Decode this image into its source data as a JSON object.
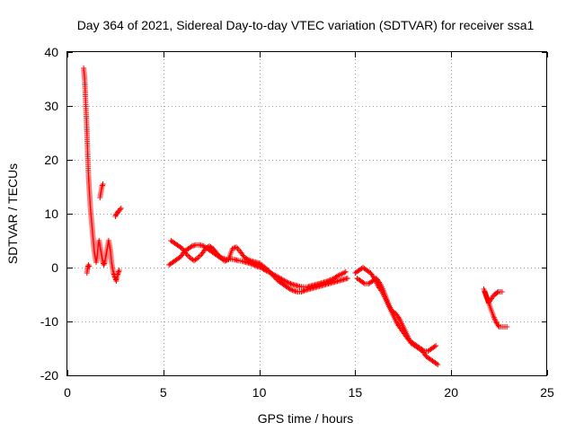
{
  "chart_data": {
    "type": "scatter",
    "title": "Day 364 of 2021, Sidereal Day-to-day VTEC variation (SDTVAR) for receiver ssa1",
    "xlabel": "GPS time / hours",
    "ylabel": "SDTVAR / TECUs",
    "xlim": [
      0,
      25
    ],
    "ylim": [
      -20,
      40
    ],
    "xticks": [
      "0",
      "5",
      "10",
      "15",
      "20",
      "25"
    ],
    "yticks": [
      "-20",
      "-10",
      "0",
      "10",
      "20",
      "30",
      "40"
    ],
    "grid": true,
    "marker": "plus",
    "color": "#ff0000",
    "series": [
      {
        "name": "ssa1",
        "segments": [
          {
            "x": [
              0.85,
              0.9,
              0.95,
              1.0,
              1.05,
              1.1,
              1.15,
              1.2,
              1.25,
              1.3,
              1.35,
              1.4,
              1.45,
              1.5,
              1.55,
              1.6,
              1.65,
              1.7,
              1.75,
              1.8,
              1.85,
              1.9,
              1.95,
              2.0,
              2.05,
              2.1,
              2.15,
              2.2,
              2.25,
              2.3,
              2.35,
              2.4,
              2.45,
              2.5,
              2.55,
              2.6,
              2.65,
              2.7
            ],
            "y": [
              37,
              35,
              31,
              27,
              22,
              17,
              14,
              11,
              9,
              7,
              5,
              3,
              2,
              1,
              2,
              4,
              5,
              4,
              3,
              2,
              1,
              0.5,
              1,
              2,
              3,
              4,
              5,
              4,
              3,
              1,
              0,
              -1,
              -1.5,
              -2,
              -2.5,
              -1.5,
              -1,
              -0.5
            ]
          },
          {
            "x": [
              1.02,
              1.06,
              1.1,
              1.14
            ],
            "y": [
              -1,
              0,
              0.5,
              0.2
            ]
          },
          {
            "x": [
              1.7,
              1.75,
              1.8,
              1.85
            ],
            "y": [
              13,
              14,
              15,
              15.5
            ]
          },
          {
            "x": [
              2.5,
              2.55,
              2.6,
              2.65,
              2.7,
              2.75,
              2.8
            ],
            "y": [
              9.5,
              10,
              10,
              10.5,
              10.5,
              10.8,
              11
            ]
          },
          {
            "x": [
              5.3,
              5.5,
              5.7,
              5.9,
              6.1,
              6.3,
              6.5,
              6.7,
              6.9,
              7.1,
              7.3,
              7.5,
              7.7,
              7.9,
              8.1,
              8.3,
              8.5,
              8.7,
              8.9,
              9.1,
              9.3,
              9.5,
              9.7,
              9.9,
              10.1,
              10.3,
              10.5,
              10.7,
              10.9,
              11.1,
              11.3,
              11.5,
              11.7,
              11.9,
              12.1,
              12.3,
              12.5,
              12.7,
              12.9,
              13.1,
              13.3,
              13.5,
              13.7,
              13.9,
              14.1,
              14.3,
              14.5
            ],
            "y": [
              0.5,
              1,
              1.5,
              2,
              3,
              3.5,
              4,
              4.2,
              4.2,
              4,
              3.5,
              3,
              2.5,
              2,
              1.7,
              1.5,
              1.6,
              1.5,
              1.3,
              1.2,
              1,
              0.8,
              0.5,
              0.2,
              0,
              -0.5,
              -0.8,
              -1.2,
              -1.6,
              -2,
              -2.4,
              -2.8,
              -3.1,
              -3.3,
              -3.5,
              -3.6,
              -3.6,
              -3.4,
              -3.2,
              -3,
              -2.8,
              -2.6,
              -2.3,
              -2,
              -1.5,
              -1.2,
              -0.8
            ]
          },
          {
            "x": [
              5.4,
              5.6,
              5.8,
              6.0,
              6.2,
              6.4,
              6.6,
              6.8,
              7.0,
              7.2,
              7.4,
              7.6,
              7.8,
              8.0,
              8.2,
              8.4,
              8.6,
              8.8,
              9.0,
              9.2,
              9.4,
              9.6,
              9.8,
              10.0,
              10.2,
              10.4,
              10.6,
              10.8,
              11.0,
              11.2,
              11.4,
              11.6,
              11.8,
              12.0,
              12.2,
              12.4,
              12.6,
              12.8,
              13.0,
              13.2,
              13.4,
              13.6,
              13.8,
              14.0,
              14.2,
              14.4,
              14.6
            ],
            "y": [
              5,
              4.5,
              4,
              3.5,
              2.5,
              1.8,
              1.3,
              1.8,
              2.5,
              3.5,
              4,
              3.5,
              2.6,
              1.8,
              1.2,
              1.5,
              3.5,
              3.8,
              3,
              2,
              1.5,
              1.2,
              1,
              0.8,
              0.3,
              -0.3,
              -1,
              -1.8,
              -2.5,
              -3,
              -3.5,
              -4,
              -4.3,
              -4.5,
              -4.5,
              -4.2,
              -4,
              -3.8,
              -3.6,
              -3.4,
              -3.2,
              -3,
              -2.8,
              -2.6,
              -2.4,
              -2.2,
              -2
            ]
          },
          {
            "x": [
              15.0,
              15.2,
              15.4,
              15.6,
              15.8,
              16.0,
              16.2,
              16.4,
              16.6,
              16.8,
              17.0,
              17.2,
              17.4,
              17.6,
              17.8,
              18.0,
              18.2,
              18.4,
              18.6,
              18.8,
              19.0,
              19.2
            ],
            "y": [
              -1,
              -0.5,
              0,
              -0.5,
              -1,
              -2,
              -3.5,
              -4.5,
              -6,
              -7.5,
              -9,
              -10.5,
              -11.5,
              -12.5,
              -13.5,
              -14,
              -14.5,
              -15,
              -15.5,
              -15.5,
              -15,
              -14.5
            ]
          },
          {
            "x": [
              15.1,
              15.3,
              15.5,
              15.7,
              15.9,
              16.1,
              16.3,
              16.5,
              16.7,
              16.9,
              17.1,
              17.3,
              17.5,
              17.7,
              17.9,
              18.1,
              18.3,
              18.5,
              18.7,
              18.9,
              19.1,
              19.3
            ],
            "y": [
              -2,
              -2.5,
              -3,
              -3,
              -2.5,
              -2,
              -3,
              -4.5,
              -6.5,
              -8,
              -8.5,
              -9.5,
              -11,
              -12.5,
              -14,
              -14.5,
              -15,
              -15.5,
              -16.5,
              -17,
              -17.5,
              -18
            ]
          },
          {
            "x": [
              21.7,
              21.8,
              21.9,
              22.0,
              22.1,
              22.2,
              22.3,
              22.4,
              22.5,
              22.6,
              22.7,
              22.8,
              22.9
            ],
            "y": [
              -4,
              -5,
              -6,
              -7,
              -8,
              -9,
              -9.8,
              -10.5,
              -11,
              -11,
              -11,
              -11,
              -11
            ]
          },
          {
            "x": [
              21.75,
              21.85,
              21.95,
              22.05,
              22.15,
              22.25,
              22.35,
              22.45,
              22.55,
              22.65
            ],
            "y": [
              -4.5,
              -5.5,
              -6.5,
              -6,
              -5.5,
              -5,
              -4.8,
              -4.5,
              -4.5,
              -4.5
            ]
          }
        ]
      }
    ]
  }
}
